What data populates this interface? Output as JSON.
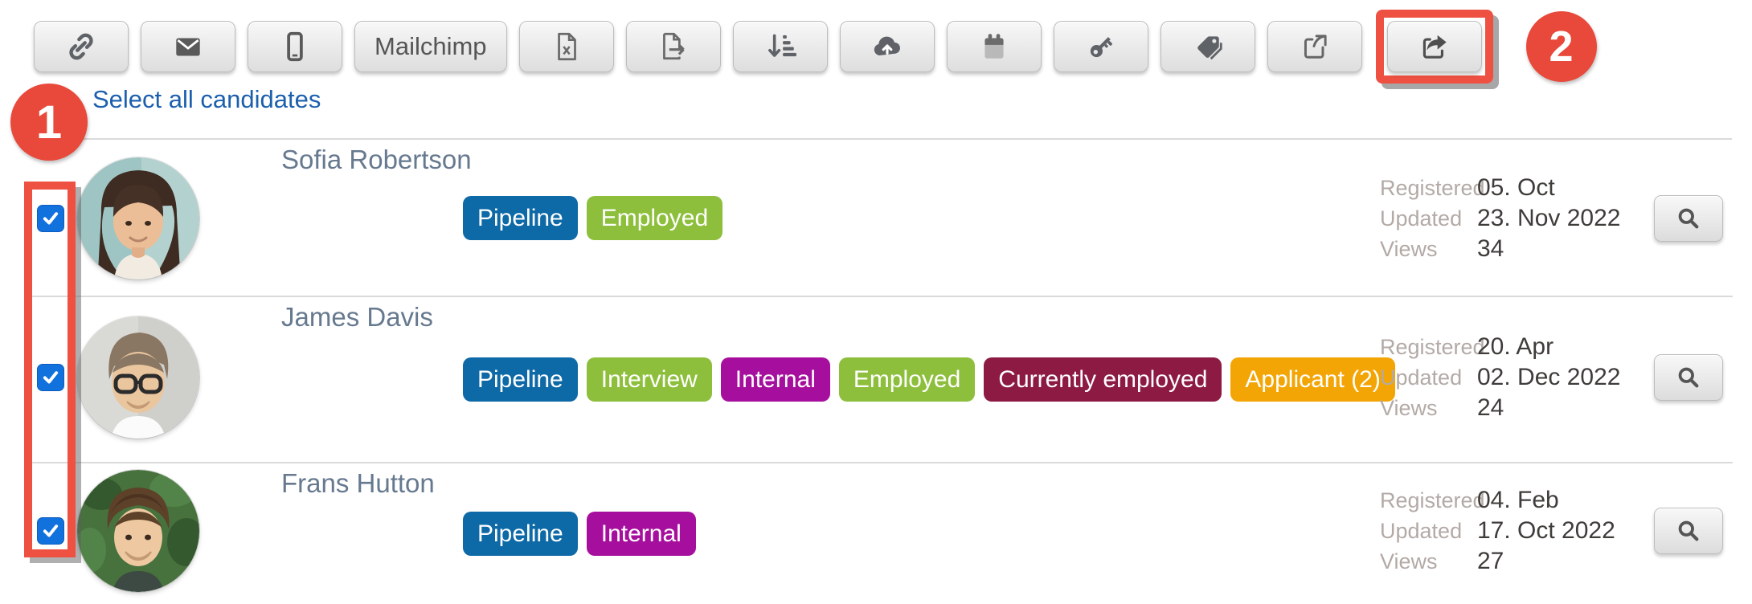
{
  "colors": {
    "annotation_red": "#e8493a",
    "annotation_border": "#ee5042",
    "link_blue": "#1b5fad",
    "checkbox_blue": "#1272dd",
    "name_text": "#66798f",
    "tag_pipeline": "#0e69a7",
    "tag_green": "#8dbf3c",
    "tag_internal": "#a60f9d",
    "tag_currently_employed": "#8c1a43",
    "tag_applicant": "#f3a505"
  },
  "toolbar": {
    "buttons": [
      {
        "icon": "link-icon"
      },
      {
        "icon": "email-icon"
      },
      {
        "icon": "mobile-icon"
      },
      {
        "label": "Mailchimp"
      },
      {
        "icon": "excel-file-icon"
      },
      {
        "icon": "file-export-icon"
      },
      {
        "icon": "sort-icon"
      },
      {
        "icon": "cloud-upload-icon"
      },
      {
        "icon": "calendar-icon"
      },
      {
        "icon": "key-icon"
      },
      {
        "icon": "tag-icon"
      },
      {
        "icon": "share-outline-icon"
      },
      {
        "icon": "share-icon",
        "highlighted": true
      }
    ]
  },
  "annotations": {
    "step1": "1",
    "step2": "2"
  },
  "select_all_label": "Select all candidates",
  "meta_labels": {
    "registered": "Registered",
    "updated": "Updated",
    "views": "Views"
  },
  "row_action_icon": "search-icon",
  "candidates": [
    {
      "name": "Sofia Robertson",
      "avatar": "sofia",
      "checked": true,
      "tags": [
        {
          "label": "Pipeline",
          "color": "#0e69a7"
        },
        {
          "label": "Employed",
          "color": "#8dbf3c"
        }
      ],
      "registered": "05. Oct",
      "updated": "23. Nov 2022",
      "views": "34"
    },
    {
      "name": "James Davis",
      "avatar": "james",
      "checked": true,
      "tags": [
        {
          "label": "Pipeline",
          "color": "#0e69a7"
        },
        {
          "label": "Interview",
          "color": "#8dbf3c"
        },
        {
          "label": "Internal",
          "color": "#a60f9d"
        },
        {
          "label": "Employed",
          "color": "#8dbf3c"
        },
        {
          "label": "Currently employed",
          "color": "#8c1a43"
        },
        {
          "label": "Applicant (2)",
          "color": "#f3a505"
        }
      ],
      "registered": "20. Apr",
      "updated": "02. Dec 2022",
      "views": "24"
    },
    {
      "name": "Frans Hutton",
      "avatar": "frans",
      "checked": true,
      "tags": [
        {
          "label": "Pipeline",
          "color": "#0e69a7"
        },
        {
          "label": "Internal",
          "color": "#a60f9d"
        }
      ],
      "registered": "04. Feb",
      "updated": "17. Oct 2022",
      "views": "27"
    }
  ]
}
